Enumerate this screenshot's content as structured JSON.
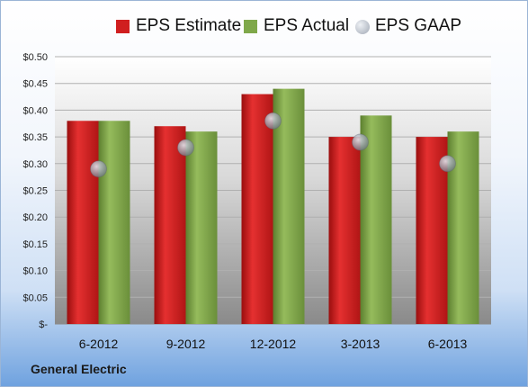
{
  "company": "General Electric",
  "legend": [
    {
      "label": "EPS Estimate",
      "color": "#d01f1f",
      "shape": "square"
    },
    {
      "label": "EPS Actual",
      "color": "#7fa84a",
      "shape": "square"
    },
    {
      "label": "EPS GAAP",
      "color": "#a0a8b4",
      "shape": "circle"
    }
  ],
  "chart_data": {
    "type": "bar",
    "categories": [
      "6-2012",
      "9-2012",
      "12-2012",
      "3-2013",
      "6-2013"
    ],
    "series": [
      {
        "name": "EPS Estimate",
        "values": [
          0.38,
          0.37,
          0.43,
          0.35,
          0.35
        ],
        "color": "#d01f1f"
      },
      {
        "name": "EPS Actual",
        "values": [
          0.38,
          0.36,
          0.44,
          0.39,
          0.36
        ],
        "color": "#7fa84a"
      },
      {
        "name": "EPS GAAP",
        "type": "scatter",
        "values": [
          0.29,
          0.33,
          0.38,
          0.34,
          0.3
        ],
        "color": "#a0a8b4"
      }
    ],
    "yticks": [
      "$-",
      "$0.05",
      "$0.10",
      "$0.15",
      "$0.20",
      "$0.25",
      "$0.30",
      "$0.35",
      "$0.40",
      "$0.45",
      "$0.50"
    ],
    "ylim": [
      0,
      0.5
    ],
    "grid": true,
    "legend_position": "top"
  }
}
